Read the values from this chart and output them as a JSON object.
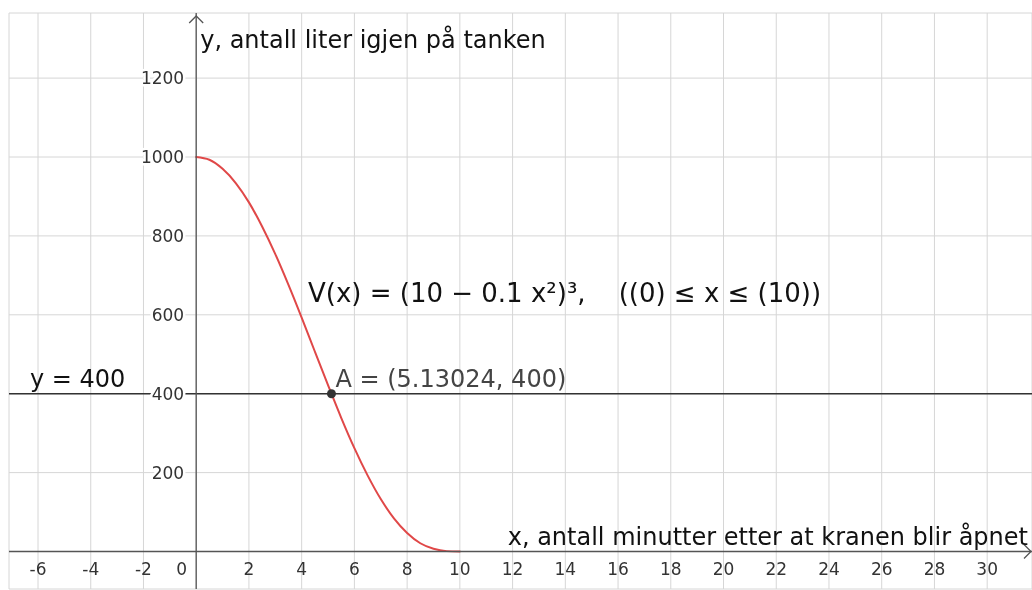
{
  "chart_data": {
    "type": "line",
    "xlabel": "x, antall minutter etter at kranen blir åpnet",
    "ylabel": "y, antall liter igjen på tanken",
    "xlim": [
      -7.1,
      31.7
    ],
    "ylim": [
      -95,
      1365
    ],
    "xticks": [
      -6,
      -4,
      -2,
      0,
      2,
      4,
      6,
      8,
      10,
      12,
      14,
      16,
      18,
      20,
      22,
      24,
      26,
      28,
      30
    ],
    "yticks": [
      200,
      400,
      600,
      800,
      1000,
      1200
    ],
    "grid": true,
    "series": [
      {
        "color": "#e04848",
        "x": [
          0,
          0.5,
          1,
          1.5,
          2,
          2.5,
          3,
          3.5,
          4,
          4.5,
          5,
          5.5,
          6,
          6.5,
          7,
          7.5,
          8,
          8.5,
          9,
          9.5,
          10
        ],
        "values": [
          1000,
          993,
          970,
          934,
          885,
          824,
          754,
          676,
          593,
          507,
          422,
          339,
          262,
          193,
          133,
          84,
          47,
          21,
          7,
          1,
          0
        ]
      },
      {
        "type": "scatter",
        "color": "#333333",
        "marker": "circle",
        "x": [
          5.13024
        ],
        "values": [
          400
        ]
      }
    ],
    "ref_lines": [
      {
        "axis": "y",
        "value": 400,
        "label": "y = 400",
        "color": "#333333"
      }
    ],
    "annotations": [
      "V(x) = (10 − 0.1 x²)³,    ((0) ≤ x ≤ (10))",
      {
        "text": "A = (5.13024, 400)",
        "x": 5.13024,
        "y": 400
      }
    ]
  }
}
